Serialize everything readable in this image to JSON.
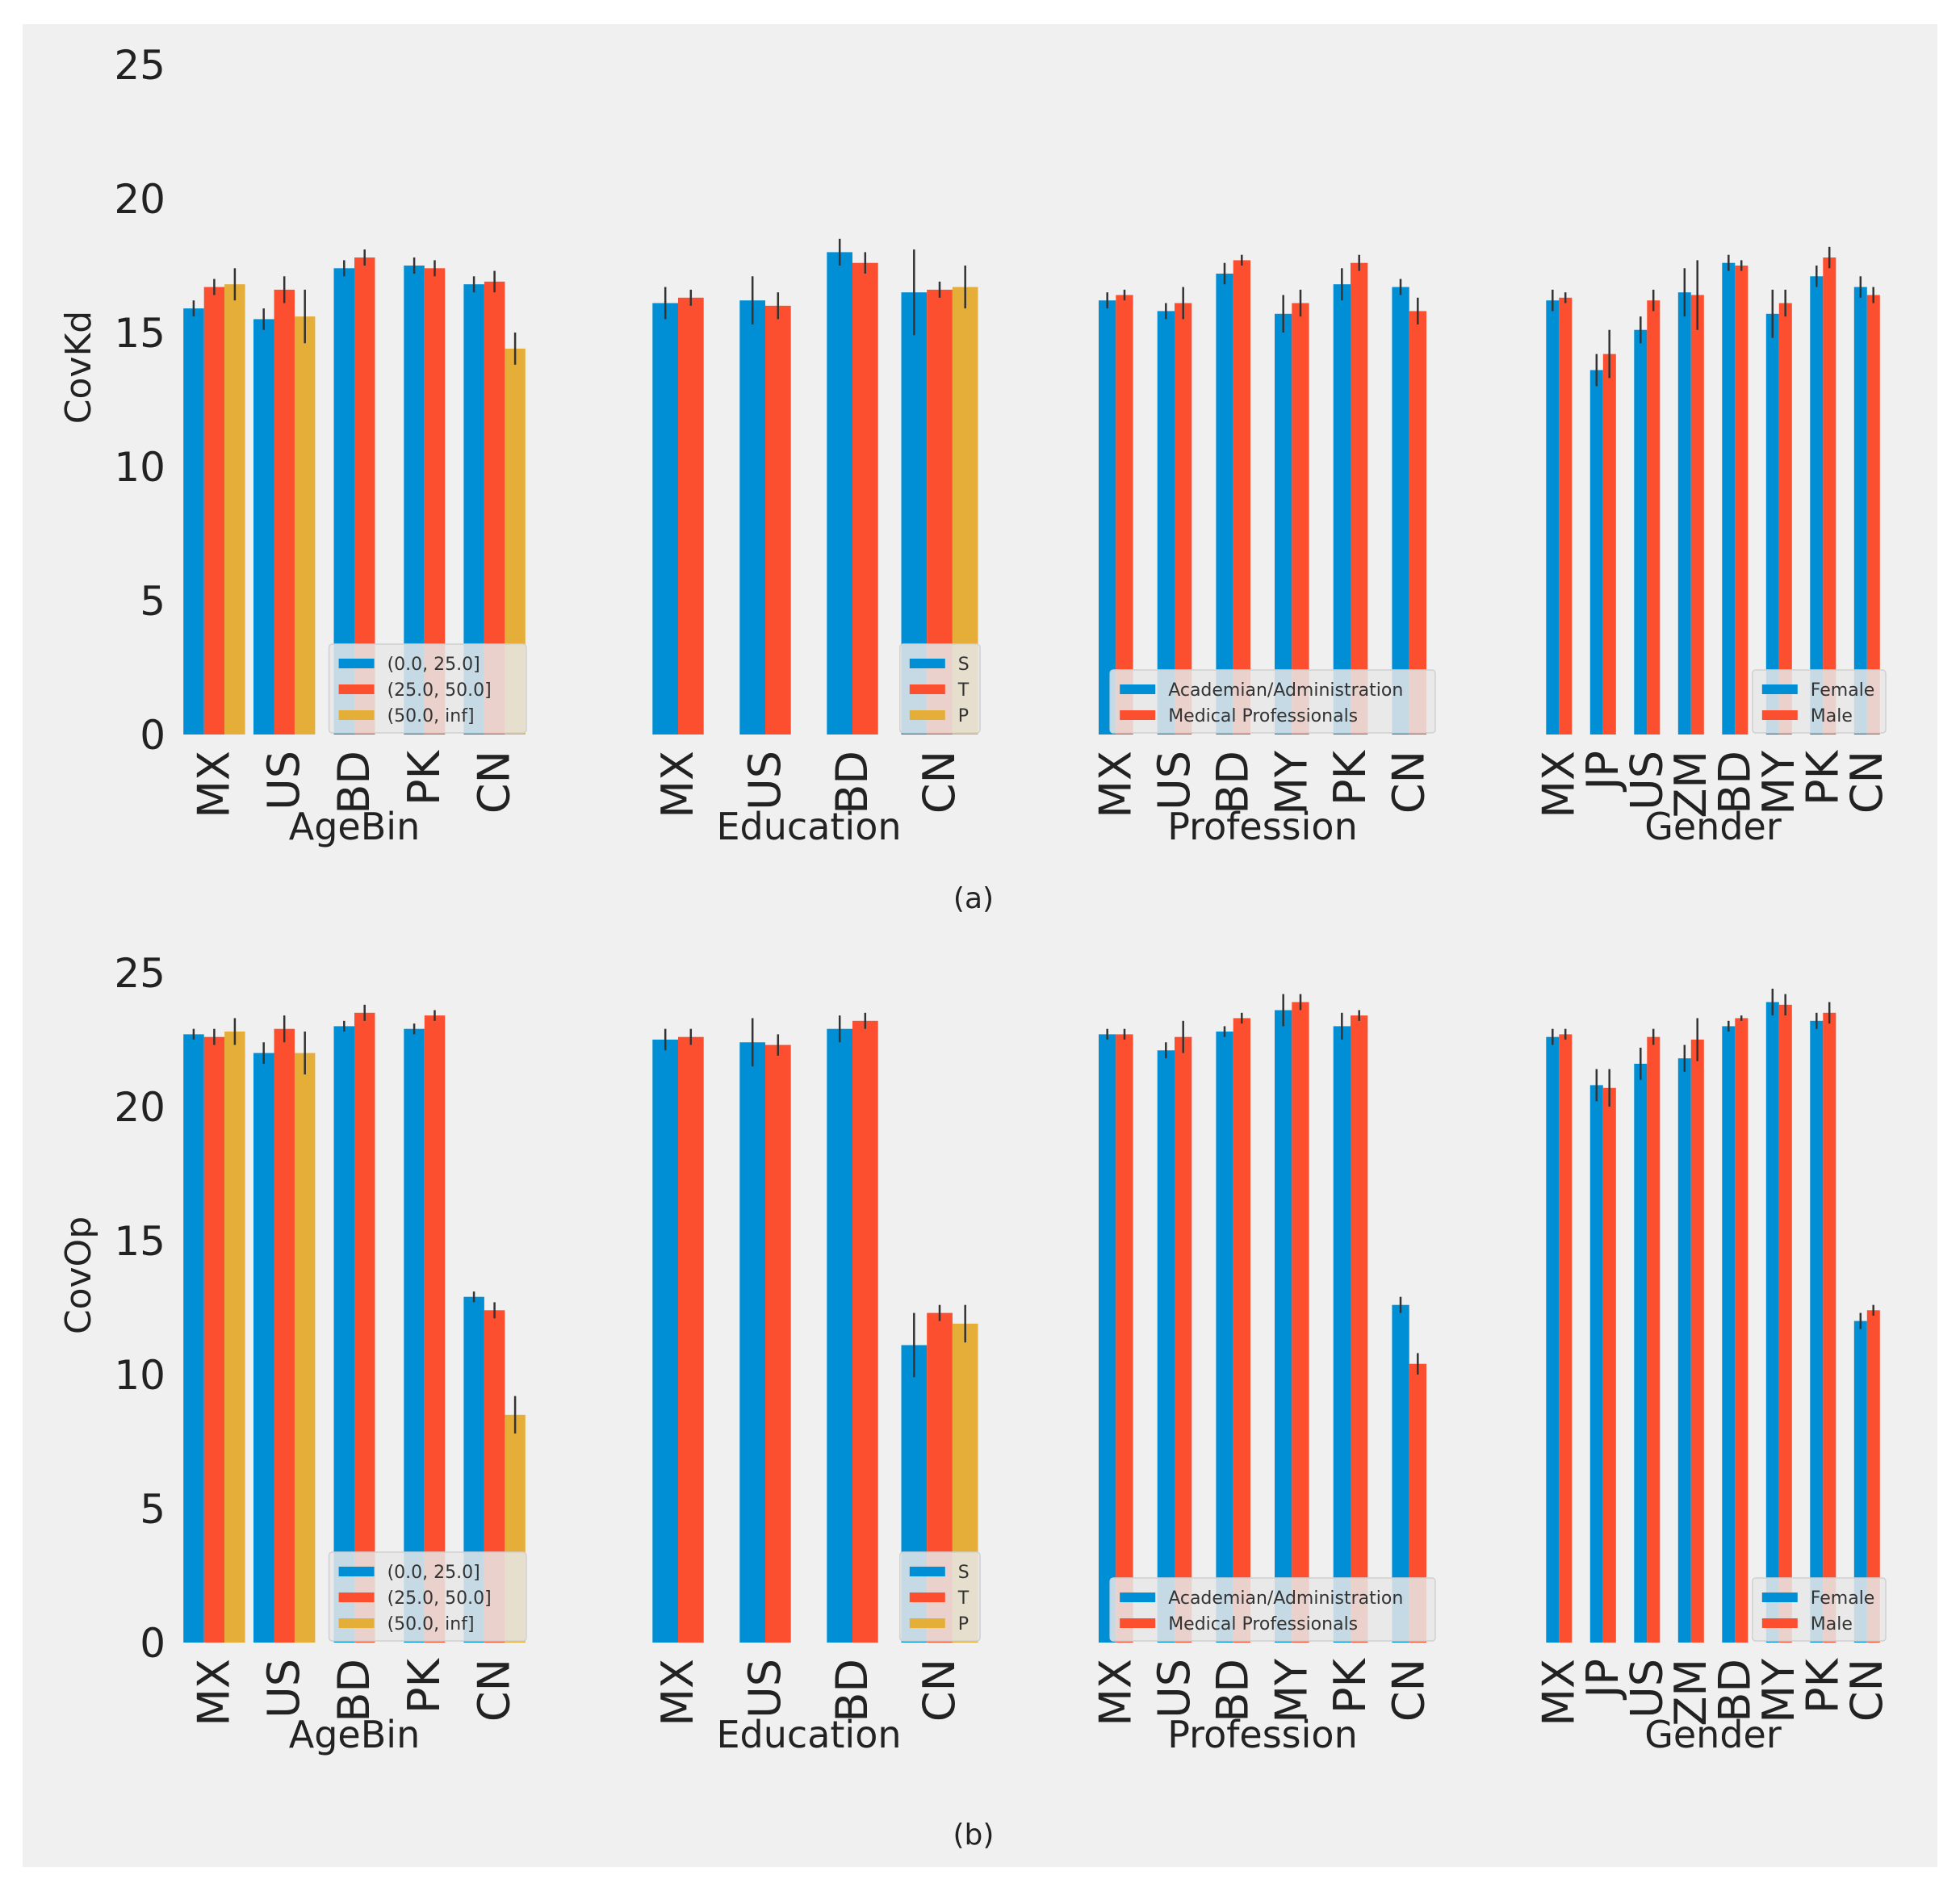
{
  "colors": {
    "series1": "#008fd5",
    "series2": "#fc4f30",
    "series3": "#e5ae38",
    "background": "#f0f0f0",
    "errorbar": "#333333"
  },
  "chart_data": [
    {
      "type": "bar",
      "panel_label": "(a)",
      "ylabel": "CovKd",
      "ylim": [
        0,
        25
      ],
      "yticks": [
        "0",
        "5",
        "10",
        "15",
        "20",
        "25"
      ],
      "grid": false,
      "groups": [
        {
          "xlabel": "AgeBin",
          "categories": [
            "MX",
            "US",
            "BD",
            "PK",
            "CN"
          ],
          "legend_position": "lower-right",
          "series": [
            {
              "name": "(0.0, 25.0]",
              "values": [
                15.9,
                15.5,
                17.4,
                17.5,
                16.8
              ],
              "errors": [
                0.3,
                0.4,
                0.3,
                0.3,
                0.3
              ]
            },
            {
              "name": "(25.0, 50.0]",
              "values": [
                16.7,
                16.6,
                17.8,
                17.4,
                16.9
              ],
              "errors": [
                0.3,
                0.5,
                0.3,
                0.3,
                0.4
              ]
            },
            {
              "name": "(50.0, inf]",
              "values": [
                16.8,
                15.6,
                null,
                null,
                14.4
              ],
              "errors": [
                0.6,
                1.0,
                null,
                null,
                0.6
              ]
            }
          ]
        },
        {
          "xlabel": "Education",
          "categories": [
            "MX",
            "US",
            "BD",
            "CN"
          ],
          "legend_position": "lower-right",
          "series": [
            {
              "name": "S",
              "values": [
                16.1,
                16.2,
                18.0,
                16.5
              ],
              "errors": [
                0.6,
                0.9,
                0.5,
                1.6
              ]
            },
            {
              "name": "T",
              "values": [
                16.3,
                16.0,
                17.6,
                16.6
              ],
              "errors": [
                0.3,
                0.5,
                0.4,
                0.3
              ]
            },
            {
              "name": "P",
              "values": [
                null,
                null,
                null,
                16.7
              ],
              "errors": [
                null,
                null,
                null,
                0.8
              ]
            }
          ]
        },
        {
          "xlabel": "Profession",
          "categories": [
            "MX",
            "US",
            "BD",
            "MY",
            "PK",
            "CN"
          ],
          "legend_position": "lower-right",
          "series": [
            {
              "name": "Academian/Administration",
              "values": [
                16.2,
                15.8,
                17.2,
                15.7,
                16.8,
                16.7
              ],
              "errors": [
                0.3,
                0.3,
                0.4,
                0.7,
                0.6,
                0.3
              ]
            },
            {
              "name": "Medical Professionals",
              "values": [
                16.4,
                16.1,
                17.7,
                16.1,
                17.6,
                15.8
              ],
              "errors": [
                0.2,
                0.6,
                0.2,
                0.5,
                0.3,
                0.5
              ]
            }
          ]
        },
        {
          "xlabel": "Gender",
          "categories": [
            "MX",
            "JP",
            "US",
            "ZM",
            "BD",
            "MY",
            "PK",
            "CN"
          ],
          "legend_position": "lower-right",
          "series": [
            {
              "name": "Female",
              "values": [
                16.2,
                13.6,
                15.1,
                16.5,
                17.6,
                15.7,
                17.1,
                16.7
              ],
              "errors": [
                0.4,
                0.6,
                0.5,
                0.9,
                0.3,
                0.9,
                0.4,
                0.4
              ]
            },
            {
              "name": "Male",
              "values": [
                16.3,
                14.2,
                16.2,
                16.4,
                17.5,
                16.1,
                17.8,
                16.4
              ],
              "errors": [
                0.2,
                0.9,
                0.4,
                1.3,
                0.2,
                0.5,
                0.4,
                0.3
              ]
            }
          ]
        }
      ]
    },
    {
      "type": "bar",
      "panel_label": "(b)",
      "ylabel": "CovOp",
      "ylim": [
        0,
        25
      ],
      "yticks": [
        "0",
        "5",
        "10",
        "15",
        "20",
        "25"
      ],
      "grid": false,
      "groups": [
        {
          "xlabel": "AgeBin",
          "categories": [
            "MX",
            "US",
            "BD",
            "PK",
            "CN"
          ],
          "legend_position": "lower-right",
          "series": [
            {
              "name": "(0.0, 25.0]",
              "values": [
                22.7,
                22.0,
                23.0,
                22.9,
                12.9
              ],
              "errors": [
                0.2,
                0.4,
                0.2,
                0.2,
                0.2
              ]
            },
            {
              "name": "(25.0, 50.0]",
              "values": [
                22.6,
                22.9,
                23.5,
                23.4,
                12.4
              ],
              "errors": [
                0.3,
                0.5,
                0.3,
                0.2,
                0.3
              ]
            },
            {
              "name": "(50.0, inf]",
              "values": [
                22.8,
                22.0,
                null,
                null,
                8.5
              ],
              "errors": [
                0.5,
                0.8,
                null,
                null,
                0.7
              ]
            }
          ]
        },
        {
          "xlabel": "Education",
          "categories": [
            "MX",
            "US",
            "BD",
            "CN"
          ],
          "legend_position": "lower-right",
          "series": [
            {
              "name": "S",
              "values": [
                22.5,
                22.4,
                22.9,
                11.1
              ],
              "errors": [
                0.4,
                0.9,
                0.5,
                1.2
              ]
            },
            {
              "name": "T",
              "values": [
                22.6,
                22.3,
                23.2,
                12.3
              ],
              "errors": [
                0.3,
                0.4,
                0.3,
                0.3
              ]
            },
            {
              "name": "P",
              "values": [
                null,
                null,
                null,
                11.9
              ],
              "errors": [
                null,
                null,
                null,
                0.7
              ]
            }
          ]
        },
        {
          "xlabel": "Profession",
          "categories": [
            "MX",
            "US",
            "BD",
            "MY",
            "PK",
            "CN"
          ],
          "legend_position": "lower-right",
          "series": [
            {
              "name": "Academian/Administration",
              "values": [
                22.7,
                22.1,
                22.8,
                23.6,
                23.0,
                12.6
              ],
              "errors": [
                0.2,
                0.3,
                0.2,
                0.6,
                0.5,
                0.3
              ]
            },
            {
              "name": "Medical Professionals",
              "values": [
                22.7,
                22.6,
                23.3,
                23.9,
                23.4,
                10.4
              ],
              "errors": [
                0.2,
                0.6,
                0.2,
                0.3,
                0.2,
                0.4
              ]
            }
          ]
        },
        {
          "xlabel": "Gender",
          "categories": [
            "MX",
            "JP",
            "US",
            "ZM",
            "BD",
            "MY",
            "PK",
            "CN"
          ],
          "legend_position": "lower-right",
          "series": [
            {
              "name": "Female",
              "values": [
                22.6,
                20.8,
                21.6,
                21.8,
                23.0,
                23.9,
                23.2,
                12.0
              ],
              "errors": [
                0.3,
                0.6,
                0.6,
                0.5,
                0.2,
                0.5,
                0.3,
                0.3
              ]
            },
            {
              "name": "Male",
              "values": [
                22.7,
                20.7,
                22.6,
                22.5,
                23.3,
                23.8,
                23.5,
                12.4
              ],
              "errors": [
                0.2,
                0.7,
                0.3,
                0.8,
                0.1,
                0.4,
                0.4,
                0.2
              ]
            }
          ]
        }
      ]
    }
  ]
}
